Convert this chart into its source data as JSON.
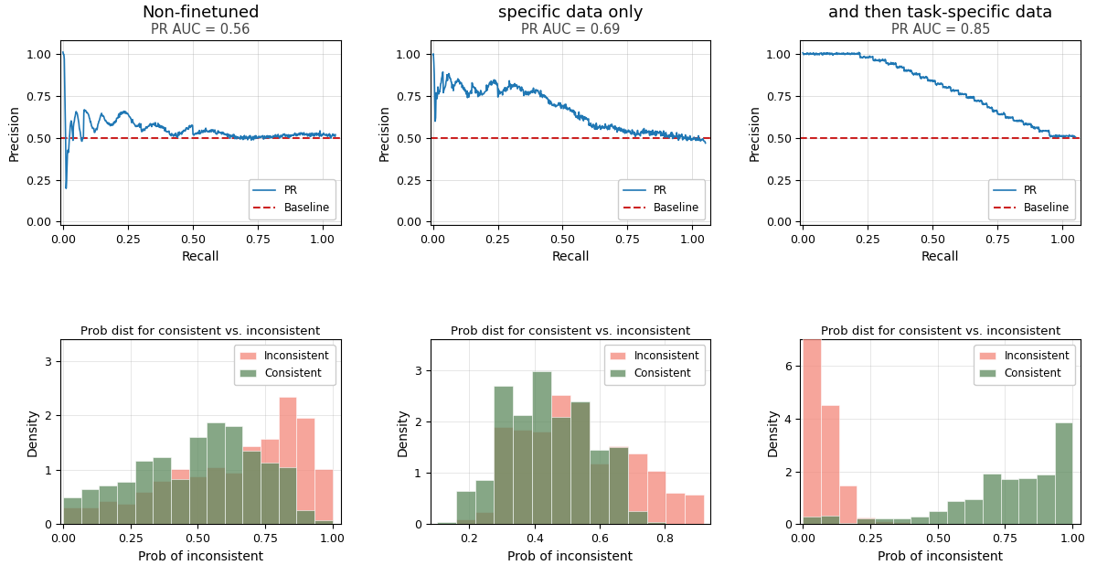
{
  "col_titles": [
    "Non-finetuned",
    "Finetuned on task-\nspecific data only",
    "Finetuned on out-of-domain\nand then task-specific data"
  ],
  "pr_auc_labels": [
    "PR AUC = 0.56",
    "PR AUC = 0.69",
    "PR AUC = 0.85"
  ],
  "hist_title": "Prob dist for consistent vs. inconsistent",
  "hist_xlabel": "Prob of inconsistent",
  "hist_ylabel": "Density",
  "pr_xlabel": "Recall",
  "pr_ylabel": "Precision",
  "inconsistent_color": "#F4877A",
  "consistent_color": "#5D8A5E",
  "pr_line_color": "#1f77b4",
  "baseline_color": "#CC2222",
  "background_color": "#ffffff"
}
